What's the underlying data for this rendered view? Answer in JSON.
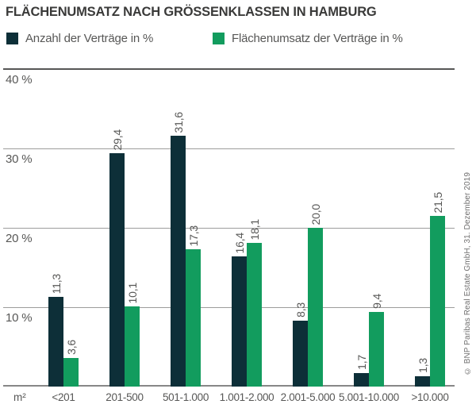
{
  "title": "FLÄCHENUMSATZ NACH GRÖSSENKLASSEN IN HAMBURG",
  "legend": [
    {
      "label": "Anzahl der Verträge in %",
      "color": "#0d2f38"
    },
    {
      "label": "Flächenumsatz der Verträge in %",
      "color": "#129c5e"
    }
  ],
  "axis": {
    "unit_label": "m²",
    "y_ticks": [
      {
        "label": "40 %",
        "value": 40
      },
      {
        "label": "30 %",
        "value": 30
      },
      {
        "label": "20 %",
        "value": 20
      },
      {
        "label": "10 %",
        "value": 10
      }
    ]
  },
  "source_note": "© BNP Paribas Real Estate GmbH, 31. Dezember 2019",
  "colors": {
    "grid": "#9d9d9c",
    "grid_top": "#575756",
    "baseline": "#878787",
    "text": "#575756",
    "title": "#3a3a39",
    "background": "#ffffff"
  },
  "chart_data": {
    "type": "bar",
    "title": "FLÄCHENUMSATZ NACH GRÖSSENKLASSEN IN HAMBURG",
    "xlabel": "m²",
    "ylabel": "%",
    "ylim": [
      0,
      40
    ],
    "grid": true,
    "legend_position": "top",
    "categories": [
      "<201",
      "201-500",
      "501-1.000",
      "1.001-2.000",
      "2.001-5.000",
      "5.001-10.000",
      ">10.000"
    ],
    "series": [
      {
        "name": "Anzahl der Verträge in %",
        "color": "#0d2f38",
        "values": [
          11.3,
          29.4,
          31.6,
          16.4,
          8.3,
          1.7,
          1.3
        ],
        "display_labels": [
          "11,3",
          "29,4",
          "31,6",
          "16,4",
          "8,3",
          "1,7",
          "1,3"
        ]
      },
      {
        "name": "Flächenumsatz der Verträge in %",
        "color": "#129c5e",
        "values": [
          3.6,
          10.1,
          17.3,
          18.1,
          20.0,
          9.4,
          21.5
        ],
        "display_labels": [
          "3,6",
          "10,1",
          "17,3",
          "18,1",
          "20,0",
          "9,4",
          "21,5"
        ]
      }
    ]
  }
}
